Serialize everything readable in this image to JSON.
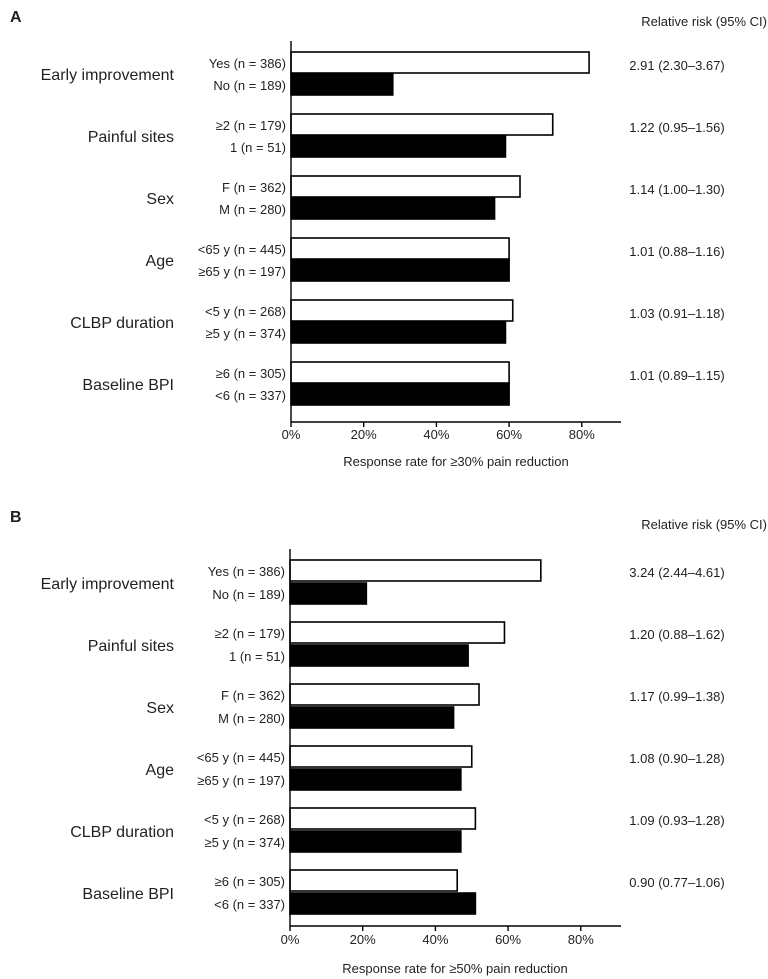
{
  "chart_data": [
    {
      "panel_label": "A",
      "type": "bar",
      "orientation": "horizontal",
      "rr_header": "Relative risk (95% CI)",
      "xlabel": "Response rate for ≥30% pain reduction",
      "xlim": [
        0,
        90
      ],
      "xticks": [
        "0%",
        "20%",
        "40%",
        "60%",
        "80%"
      ],
      "grid": false,
      "series": [
        {
          "fill": "#ffffff",
          "values": [
            82,
            72,
            63,
            60,
            61,
            60
          ]
        },
        {
          "fill": "#000000",
          "values": [
            28,
            59,
            56,
            60,
            59,
            60
          ]
        }
      ],
      "groups": [
        {
          "name": "Early improvement",
          "bars": [
            "Yes (n = 386)",
            "No (n = 189)"
          ],
          "rr": "2.91 (2.30–3.67)"
        },
        {
          "name": "Painful sites",
          "bars": [
            "≥2 (n = 179)",
            "1 (n = 51)"
          ],
          "rr": "1.22 (0.95–1.56)"
        },
        {
          "name": "Sex",
          "bars": [
            "F (n = 362)",
            "M (n = 280)"
          ],
          "rr": "1.14 (1.00–1.30)"
        },
        {
          "name": "Age",
          "bars": [
            "<65 y (n = 445)",
            "≥65 y (n = 197)"
          ],
          "rr": "1.01 (0.88–1.16)"
        },
        {
          "name": "CLBP duration",
          "bars": [
            "<5 y (n = 268)",
            "≥5 y (n = 374)"
          ],
          "rr": "1.03 (0.91–1.18)"
        },
        {
          "name": "Baseline BPI",
          "bars": [
            "≥6 (n = 305)",
            "<6 (n = 337)"
          ],
          "rr": "1.01 (0.89–1.15)"
        }
      ]
    },
    {
      "panel_label": "B",
      "type": "bar",
      "orientation": "horizontal",
      "rr_header": "Relative risk (95% CI)",
      "xlabel": "Response rate for ≥50% pain reduction",
      "xlim": [
        0,
        90
      ],
      "xticks": [
        "0%",
        "20%",
        "40%",
        "60%",
        "80%"
      ],
      "grid": false,
      "series": [
        {
          "fill": "#ffffff",
          "values": [
            69,
            59,
            52,
            50,
            51,
            46
          ]
        },
        {
          "fill": "#000000",
          "values": [
            21,
            49,
            45,
            47,
            47,
            51
          ]
        }
      ],
      "groups": [
        {
          "name": "Early improvement",
          "bars": [
            "Yes (n = 386)",
            "No (n = 189)"
          ],
          "rr": "3.24 (2.44–4.61)"
        },
        {
          "name": "Painful sites",
          "bars": [
            "≥2 (n = 179)",
            "1 (n = 51)"
          ],
          "rr": "1.20 (0.88–1.62)"
        },
        {
          "name": "Sex",
          "bars": [
            "F (n = 362)",
            "M (n = 280)"
          ],
          "rr": "1.17 (0.99–1.38)"
        },
        {
          "name": "Age",
          "bars": [
            "<65 y (n = 445)",
            "≥65 y (n = 197)"
          ],
          "rr": "1.08 (0.90–1.28)"
        },
        {
          "name": "CLBP duration",
          "bars": [
            "<5 y (n = 268)",
            "≥5 y (n = 374)"
          ],
          "rr": "1.09 (0.93–1.28)"
        },
        {
          "name": "Baseline BPI",
          "bars": [
            "≥6 (n = 305)",
            "<6 (n = 337)"
          ],
          "rr": "0.90 (0.77–1.06)"
        }
      ]
    }
  ]
}
